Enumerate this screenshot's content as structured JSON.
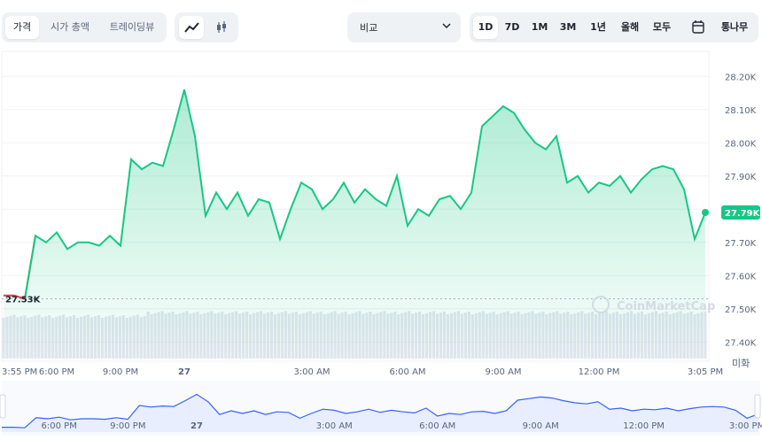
{
  "toolbar": {
    "view_tabs": [
      "가격",
      "시가 총액",
      "트레이딩뷰"
    ],
    "chart_types": [
      "line-chart-icon",
      "candlestick-icon"
    ],
    "compare_label": "비교",
    "ranges": [
      "1D",
      "7D",
      "1M",
      "3M",
      "1년",
      "올해",
      "모두"
    ],
    "calendar_icon": "calendar-icon",
    "log_label": "통나무",
    "active_range": "1D",
    "active_view": "가격"
  },
  "colors": {
    "line": "#16c784",
    "area_top": "#16c784",
    "line_below": "#ea3943",
    "volume": "#cfd6e4",
    "nav_line": "#3861fb",
    "accent_badge": "#16c784"
  },
  "chart_data": {
    "type": "area",
    "x": [
      "3:55 PM",
      "4:00 PM",
      "4:30 PM",
      "5:00 PM",
      "5:30 PM",
      "6:00 PM",
      "6:30 PM",
      "7:00 PM",
      "7:30 PM",
      "8:00 PM",
      "8:30 PM",
      "9:00 PM",
      "9:20 PM",
      "9:40 PM",
      "10:00 PM",
      "10:20 PM",
      "10:40 PM",
      "11:00 PM",
      "11:20 PM",
      "11:40 PM",
      "12:00 AM",
      "12:20 AM",
      "12:40 AM",
      "1:00 AM",
      "1:20 AM",
      "1:40 AM",
      "2:00 AM",
      "2:20 AM",
      "2:40 AM",
      "3:00 AM",
      "3:20 AM",
      "3:40 AM",
      "4:00 AM",
      "4:20 AM",
      "4:40 AM",
      "5:00 AM",
      "5:20 AM",
      "5:40 AM",
      "6:00 AM",
      "6:20 AM",
      "6:40 AM",
      "7:00 AM",
      "7:20 AM",
      "7:40 AM",
      "8:00 AM",
      "8:20 AM",
      "8:40 AM",
      "9:00 AM",
      "9:20 AM",
      "9:40 AM",
      "10:00 AM",
      "10:20 AM",
      "10:40 AM",
      "11:00 AM",
      "11:20 AM",
      "11:40 AM",
      "12:00 PM",
      "12:20 PM",
      "12:40 PM",
      "1:00 PM",
      "1:20 PM",
      "1:40 PM",
      "2:00 PM",
      "2:20 PM",
      "2:40 PM",
      "3:00 PM",
      "3:05 PM"
    ],
    "series": [
      {
        "values": [
          27.54,
          27.54,
          27.53,
          27.72,
          27.7,
          27.73,
          27.68,
          27.7,
          27.7,
          27.69,
          27.72,
          27.69,
          27.95,
          27.92,
          27.94,
          27.93,
          28.04,
          28.16,
          28.02,
          27.78,
          27.85,
          27.8,
          27.85,
          27.78,
          27.83,
          27.82,
          27.71,
          27.8,
          27.88,
          27.86,
          27.8,
          27.83,
          27.88,
          27.82,
          27.86,
          27.83,
          27.81,
          27.9,
          27.75,
          27.8,
          27.78,
          27.83,
          27.84,
          27.8,
          27.85,
          28.05,
          28.08,
          28.11,
          28.09,
          28.04,
          28.0,
          27.98,
          28.02,
          27.88,
          27.9,
          27.85,
          27.88,
          27.87,
          27.9,
          27.85,
          27.89,
          27.92,
          27.93,
          27.92,
          27.86,
          27.71,
          27.79
        ]
      }
    ],
    "baseline_value": 27.53,
    "baseline_label": "27.53K",
    "current_value": 27.79,
    "current_label": "27.79K",
    "y_ticks": [
      27.4,
      27.5,
      27.6,
      27.7,
      27.8,
      27.9,
      28.0,
      28.1,
      28.2
    ],
    "y_tick_labels": [
      "27.40K",
      "27.50K",
      "27.60K",
      "27.70K",
      "27.80K",
      "27.90K",
      "28.00K",
      "28.10K",
      "28.20K"
    ],
    "ylim": [
      27.35,
      28.27
    ],
    "x_tick_labels": [
      "3:55 PM",
      "6:00 PM",
      "9:00 PM",
      "27",
      "3:00 AM",
      "6:00 AM",
      "9:00 AM",
      "12:00 PM",
      "3:05 PM"
    ],
    "x_tick_positions": [
      0,
      5,
      11,
      17,
      29,
      38,
      47,
      56,
      66
    ],
    "currency_label": "미화",
    "watermark": "CoinMarketCap",
    "navigator_labels": [
      "6:00 PM",
      "9:00 PM",
      "27",
      "3:00 AM",
      "6:00 AM",
      "9:00 AM",
      "12:00 PM",
      "3:00 PM"
    ],
    "navigator_positions": [
      5,
      11,
      17,
      29,
      38,
      47,
      56,
      65
    ],
    "grid": true
  }
}
